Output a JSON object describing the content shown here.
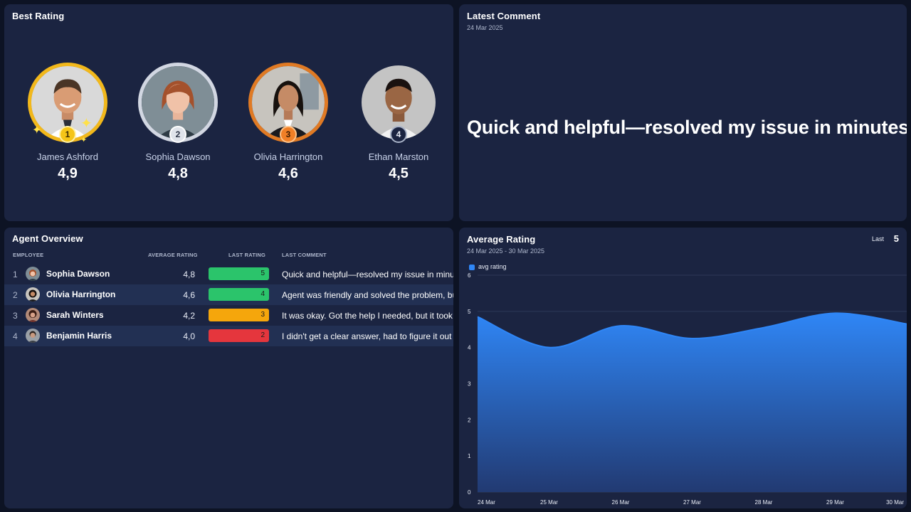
{
  "best_rating": {
    "title": "Best Rating",
    "agents": [
      {
        "rank": "1",
        "name": "James Ashford",
        "score": "4,9"
      },
      {
        "rank": "2",
        "name": "Sophia Dawson",
        "score": "4,8"
      },
      {
        "rank": "3",
        "name": "Olivia Harrington",
        "score": "4,6"
      },
      {
        "rank": "4",
        "name": "Ethan Marston",
        "score": "4,5"
      }
    ]
  },
  "latest_comment": {
    "title": "Latest Comment",
    "date": "24 Mar 2025",
    "text": "Quick and helpful—resolved my issue in minutes!"
  },
  "agent_overview": {
    "title": "Agent Overview",
    "columns": {
      "employee": "EMPLOYEE",
      "average_rating": "AVERAGE RATING",
      "last_rating": "LAST RATING",
      "last_comment": "LAST COMMENT"
    },
    "rows": [
      {
        "index": "1",
        "name": "Sophia Dawson",
        "average": "4,8",
        "last_rating": "5",
        "last_rating_color": "#2bc46b",
        "comment": "Quick and helpful—resolved my issue in minutes!"
      },
      {
        "index": "2",
        "name": "Olivia Harrington",
        "average": "4,6",
        "last_rating": "4",
        "last_rating_color": "#2bc46b",
        "comment": "Agent was friendly and solved the problem, but it took a while."
      },
      {
        "index": "3",
        "name": "Sarah Winters",
        "average": "4,2",
        "last_rating": "3",
        "last_rating_color": "#f5a60c",
        "comment": "It was okay. Got the help I needed, but it took too long."
      },
      {
        "index": "4",
        "name": "Benjamin Harris",
        "average": "4,0",
        "last_rating": "2",
        "last_rating_color": "#e5363d",
        "comment": "I didn't get a clear answer, had to figure it out myself."
      }
    ]
  },
  "average_rating": {
    "title": "Average Rating",
    "date_range": "24 Mar 2025 - 30 Mar 2025",
    "last_label": "Last",
    "last_value": "5"
  },
  "colors": {
    "accent": "#2f86f6",
    "panel": "#1b2441",
    "background": "#0d1324"
  },
  "chart_data": {
    "type": "area",
    "legend": [
      "avg rating"
    ],
    "legend_position": "top-left",
    "x": [
      "24 Mar",
      "25 Mar",
      "26 Mar",
      "27 Mar",
      "28 Mar",
      "29 Mar",
      "30 Mar"
    ],
    "series": [
      {
        "name": "avg rating",
        "values": [
          4.85,
          4.0,
          4.6,
          4.25,
          4.55,
          4.95,
          4.65
        ]
      }
    ],
    "ylim": [
      0,
      6
    ],
    "yticks": [
      "0",
      "1",
      "2",
      "3",
      "4",
      "5",
      "6"
    ],
    "grid": true
  }
}
